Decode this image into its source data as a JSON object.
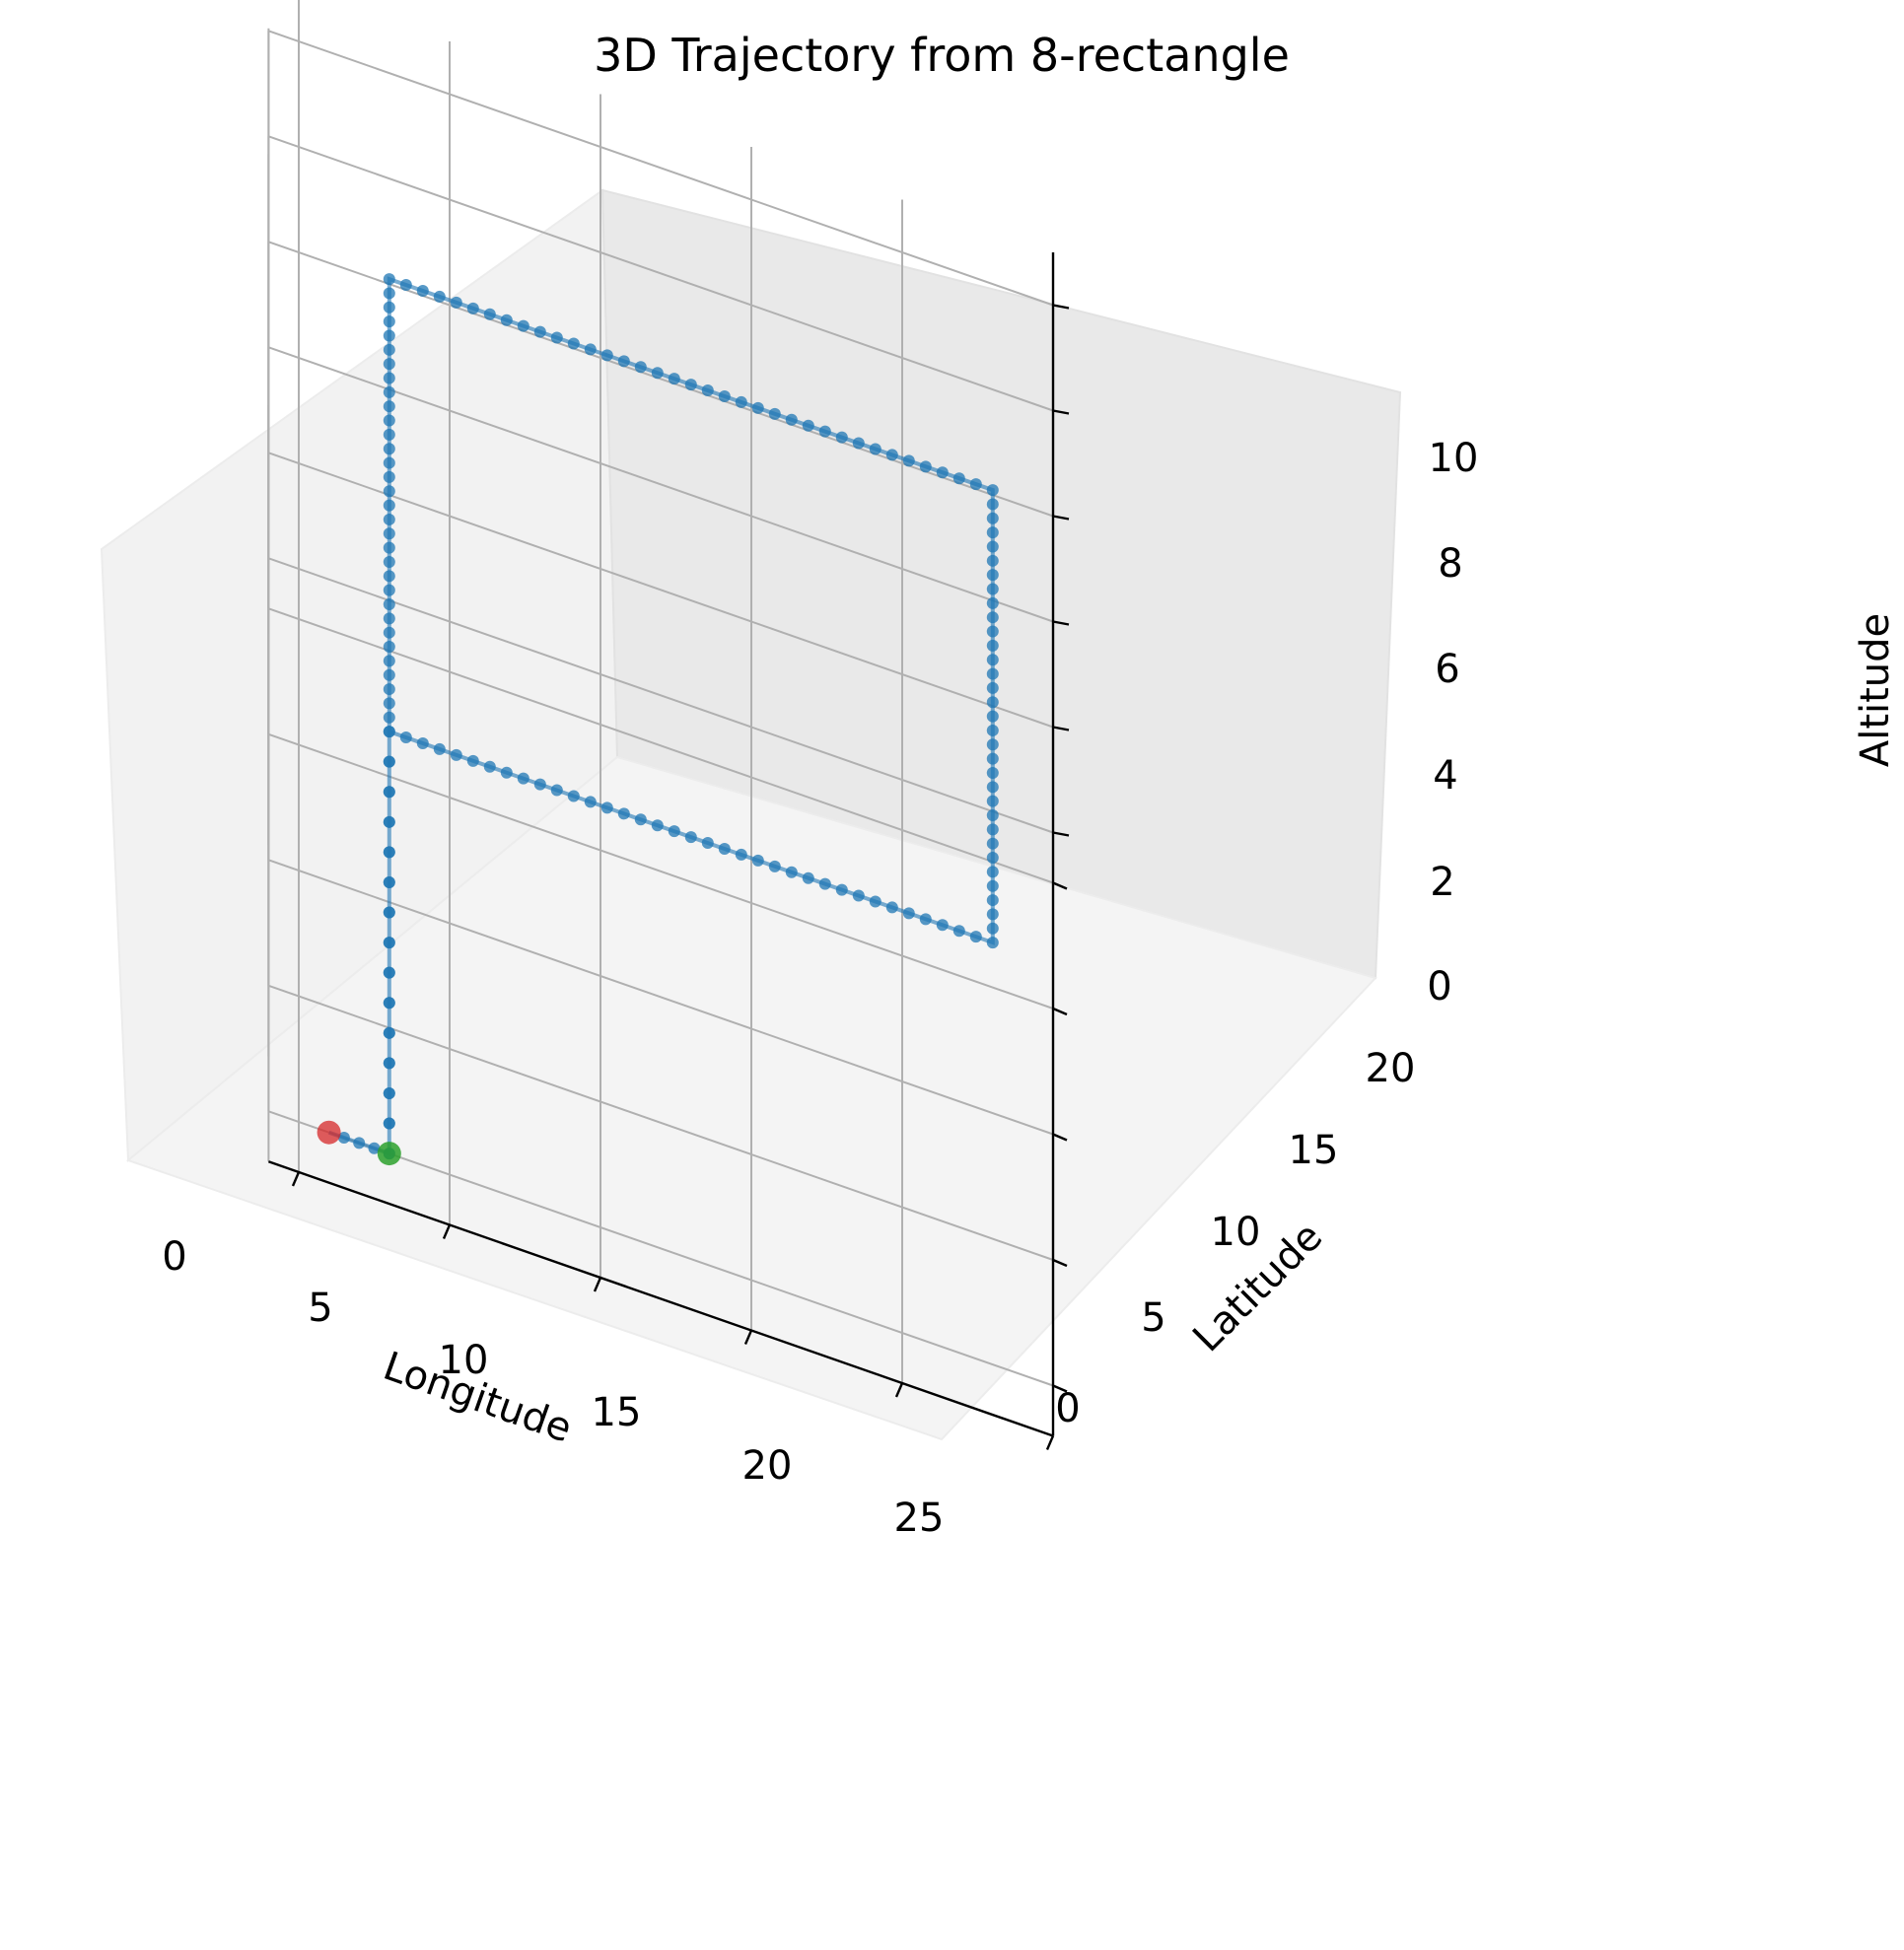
{
  "chart_data": {
    "type": "line3d",
    "title": "3D Trajectory from 8-rectangle",
    "xlabel": "Longitude",
    "ylabel": "Latitude",
    "zlabel": "Altitude",
    "x_ticks": [
      "0",
      "5",
      "10",
      "15",
      "20",
      "25"
    ],
    "y_ticks": [
      "0",
      "5",
      "10",
      "15",
      "20"
    ],
    "z_ticks": [
      "0",
      "2",
      "4",
      "6",
      "8",
      "10"
    ],
    "xlim": [
      -1,
      25
    ],
    "ylim": [
      -2,
      22
    ],
    "zlim": [
      0,
      11
    ],
    "grid": true,
    "series_color": "#1f77b4",
    "start_marker_color": "#2ca02c",
    "end_marker_color": "#d62728",
    "trajectory": [
      {
        "x": 3.0,
        "y": 0.0,
        "z": 0.0
      },
      {
        "x": 3.0,
        "y": 0.0,
        "z": 8.0
      },
      {
        "x": 3.0,
        "y": 18.0,
        "z": 8.0
      },
      {
        "x": 23.0,
        "y": 18.0,
        "z": 8.0
      },
      {
        "x": 23.0,
        "y": 0.0,
        "z": 8.0
      },
      {
        "x": 3.0,
        "y": 0.0,
        "z": 8.0
      },
      {
        "x": 3.0,
        "y": 0.0,
        "z": 0.0
      },
      {
        "x": 1.0,
        "y": 0.0,
        "z": 0.0
      }
    ],
    "start_point": {
      "x": 3.0,
      "y": 0.0,
      "z": 0.0
    },
    "end_point": {
      "x": 1.0,
      "y": 0.0,
      "z": 0.0
    }
  }
}
